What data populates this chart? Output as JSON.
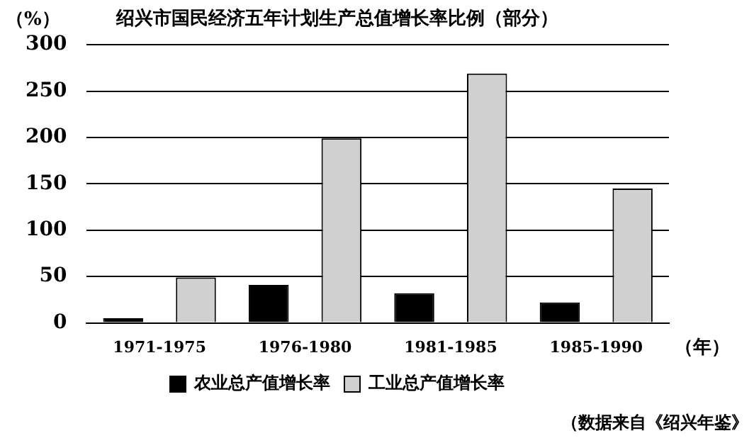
{
  "chart_data": {
    "type": "bar",
    "title": "绍兴市国民经济五年计划生产总值增长率比例（部分）",
    "ylabel": "（%）",
    "xlabel": "（年）",
    "categories": [
      "1971-1975",
      "1976-1980",
      "1981-1985",
      "1985-1990"
    ],
    "series": [
      {
        "name": "农业总产值增长率",
        "color": "#000000",
        "values": [
          5,
          41,
          32,
          22
        ]
      },
      {
        "name": "工业总产值增长率",
        "color": "#d0d0d0",
        "values": [
          49,
          199,
          269,
          145
        ]
      }
    ],
    "ylim": [
      0,
      300
    ],
    "yticks": [
      0,
      50,
      100,
      150,
      200,
      250,
      300
    ],
    "grid": "y",
    "legend": "bottom",
    "annotations": [
      "（数据来自《绍兴年鉴》"
    ]
  }
}
